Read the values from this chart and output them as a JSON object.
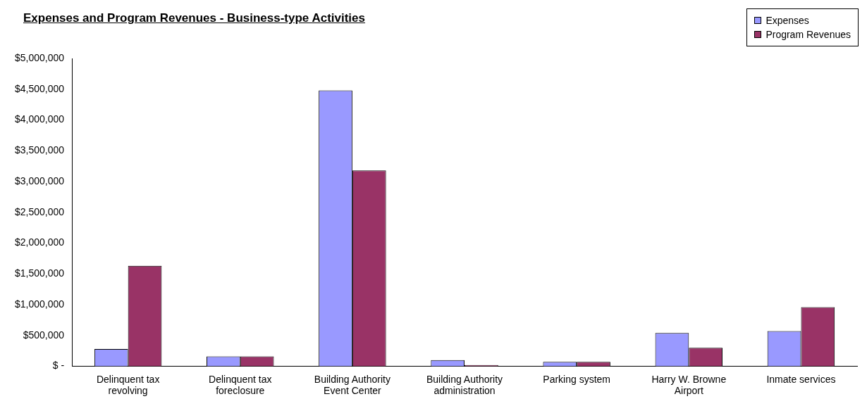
{
  "chart_data": {
    "type": "bar",
    "title": "Expenses and Program Revenues - Business-type Activities",
    "categories": [
      "Delinquent tax revolving",
      "Delinquent tax foreclosure",
      "Building Authority Event Center",
      "Building Authority administration",
      "Parking system",
      "Harry W. Browne Airport",
      "Inmate services"
    ],
    "series": [
      {
        "name": "Expenses",
        "color": "#9999ff",
        "values": [
          280000,
          160000,
          4480000,
          100000,
          70000,
          540000,
          570000
        ]
      },
      {
        "name": "Program Revenues",
        "color": "#993366",
        "values": [
          1630000,
          160000,
          3180000,
          20000,
          70000,
          300000,
          960000
        ]
      }
    ],
    "ylim": [
      0,
      5000000
    ],
    "yticks": [
      {
        "value": 0,
        "label": "$ -"
      },
      {
        "value": 500000,
        "label": "$500,000"
      },
      {
        "value": 1000000,
        "label": "$1,000,000"
      },
      {
        "value": 1500000,
        "label": "$1,500,000"
      },
      {
        "value": 2000000,
        "label": "$2,000,000"
      },
      {
        "value": 2500000,
        "label": "$2,500,000"
      },
      {
        "value": 3000000,
        "label": "$3,000,000"
      },
      {
        "value": 3500000,
        "label": "$3,500,000"
      },
      {
        "value": 4000000,
        "label": "$4,000,000"
      },
      {
        "value": 4500000,
        "label": "$4,500,000"
      },
      {
        "value": 5000000,
        "label": "$5,000,000"
      }
    ],
    "grid": false,
    "legend": "top right"
  }
}
